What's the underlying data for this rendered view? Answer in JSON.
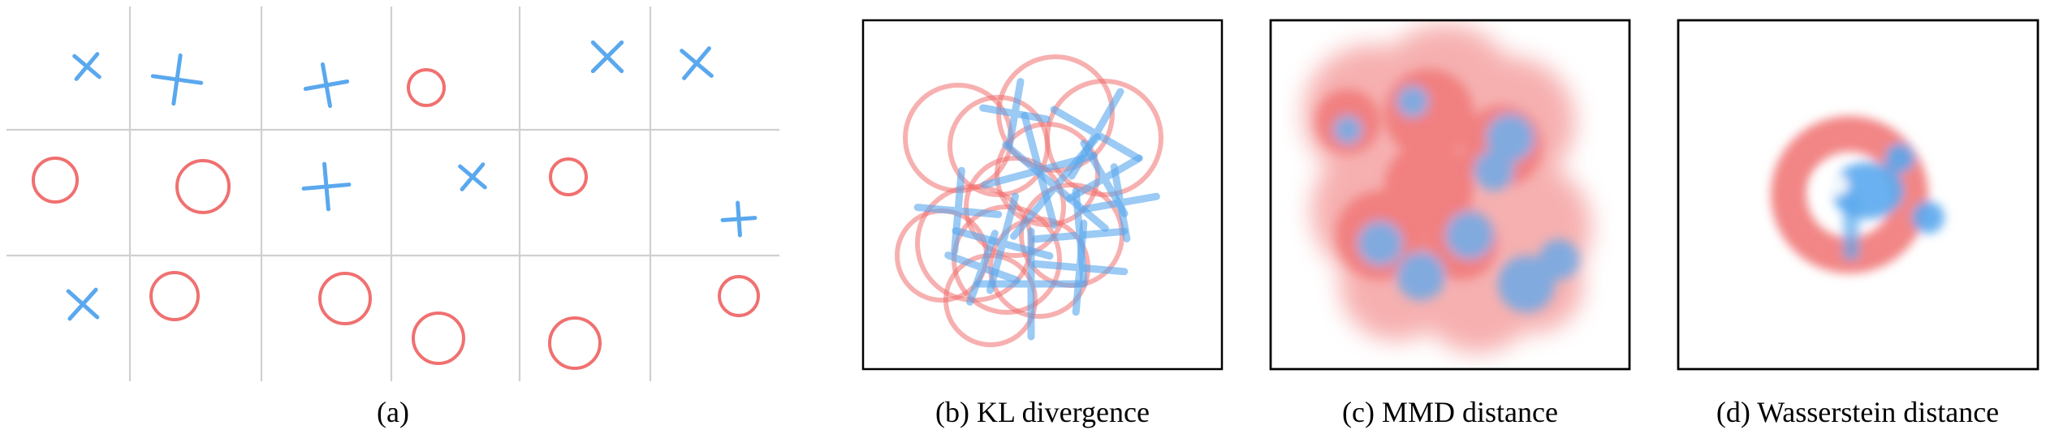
{
  "colors": {
    "circle": "#f07070",
    "cross": "#5aa8ee",
    "grid": "#d0d0d0"
  },
  "panels": {
    "a": {
      "caption": "(a)"
    },
    "b": {
      "caption": "(b) KL divergence"
    },
    "c": {
      "caption": "(c) MMD distance"
    },
    "d": {
      "caption": "(d) Wasserstein distance"
    }
  },
  "legend_symbols": [
    "circle",
    "cross"
  ]
}
